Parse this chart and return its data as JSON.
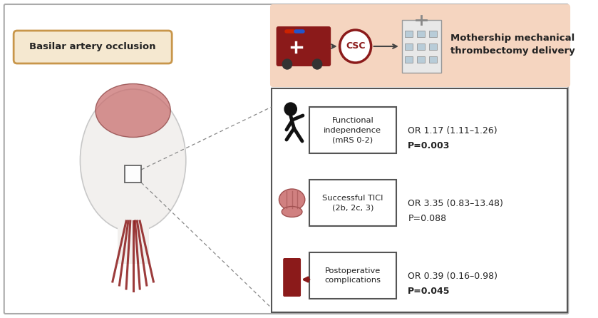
{
  "bg_color": "#ffffff",
  "top_banner_color": "#f5d5c0",
  "top_banner_text": "Mothership mechanical\nthrombectomy delivery",
  "csc_text": "CSC",
  "left_label_edge": "#c8964a",
  "left_label_face": "#f5e8d0",
  "left_label_text": "Basilar artery occlusion",
  "dark_red": "#8B1A1A",
  "text_dark": "#222222",
  "brain_color_face": "#d08080",
  "brain_color_edge": "#a05050",
  "vessel_color": "#8B1A1A",
  "row_tops": [
    140,
    242,
    344
  ],
  "row_labels": [
    "Functional\nindependence\n(mRS 0-2)",
    "Successful TICI\n(2b, 2c, 3)",
    "Postoperative\ncomplications"
  ],
  "or_texts": [
    "OR 1.17 (1.11–1.26)",
    "OR 3.35 (0.83–13.48)",
    "OR 0.39 (0.16–0.98)"
  ],
  "p_texts": [
    "P=0.003",
    "P=0.088",
    "P=0.045"
  ],
  "p_bolds": [
    true,
    false,
    true
  ]
}
